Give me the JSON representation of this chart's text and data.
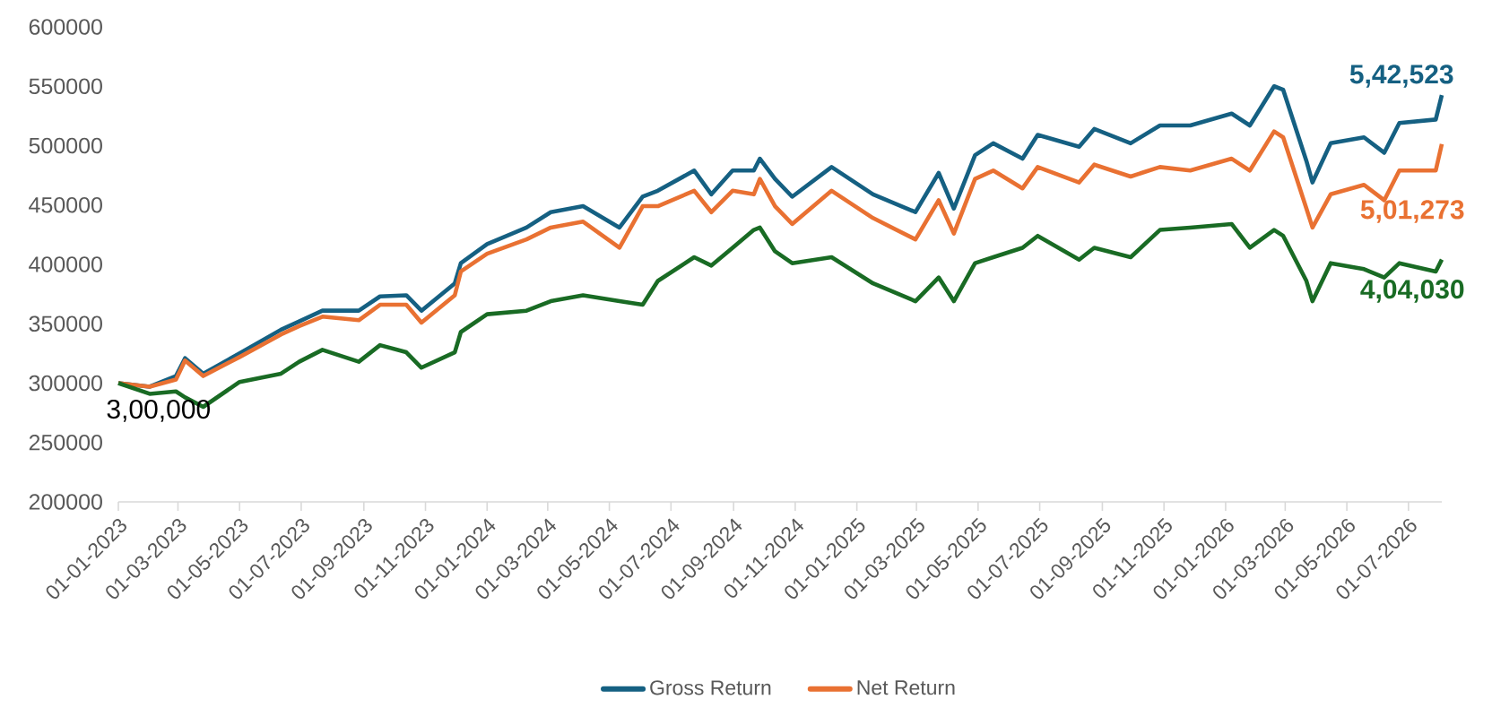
{
  "chart_data": {
    "type": "line",
    "x": [
      "2023-01-01",
      "2023-02-01",
      "2023-02-27",
      "2023-03-08",
      "2023-03-26",
      "2023-05-01",
      "2023-06-11",
      "2023-06-29",
      "2023-07-22",
      "2023-08-27",
      "2023-09-17",
      "2023-10-13",
      "2023-10-28",
      "2023-11-30",
      "2023-12-06",
      "2024-01-01",
      "2024-02-09",
      "2024-03-04",
      "2024-04-05",
      "2024-05-11",
      "2024-06-03",
      "2024-06-18",
      "2024-07-24",
      "2024-08-10",
      "2024-08-31",
      "2024-09-21",
      "2024-09-27",
      "2024-10-12",
      "2024-10-29",
      "2024-12-07",
      "2025-01-17",
      "2025-02-28",
      "2025-03-23",
      "2025-04-07",
      "2025-04-28",
      "2025-05-16",
      "2025-06-14",
      "2025-06-29",
      "2025-08-09",
      "2025-08-24",
      "2025-09-29",
      "2025-10-28",
      "2025-11-27",
      "2026-01-07",
      "2026-01-25",
      "2026-02-18",
      "2026-02-27",
      "2026-03-22",
      "2026-03-28",
      "2026-04-15",
      "2026-05-18",
      "2026-06-07",
      "2026-06-22",
      "2026-07-28",
      "2026-08-03"
    ],
    "series": [
      {
        "name": "Gross Return",
        "color": "#156082",
        "values": [
          300000,
          297000,
          306000,
          321000,
          308000,
          325000,
          345000,
          352000,
          361000,
          361000,
          373000,
          374000,
          361000,
          384000,
          401000,
          417000,
          431000,
          444000,
          449000,
          431000,
          457000,
          462000,
          479000,
          459000,
          479000,
          479000,
          489000,
          472000,
          457000,
          482000,
          459000,
          444000,
          477000,
          447000,
          492000,
          502000,
          489000,
          509000,
          499000,
          514000,
          502000,
          517000,
          517000,
          527000,
          517000,
          550000,
          547000,
          487000,
          469000,
          502000,
          507000,
          494000,
          519000,
          522000,
          542523
        ]
      },
      {
        "name": "Net Return",
        "color": "#e97132",
        "values": [
          300000,
          297000,
          303000,
          319000,
          306000,
          322000,
          341000,
          348000,
          356000,
          353000,
          366000,
          366000,
          351000,
          374000,
          394000,
          409000,
          421000,
          431000,
          436000,
          414000,
          449000,
          449000,
          462000,
          444000,
          462000,
          459000,
          472000,
          449000,
          434000,
          462000,
          439000,
          421000,
          454000,
          426000,
          472000,
          479000,
          464000,
          482000,
          469000,
          484000,
          474000,
          482000,
          479000,
          489000,
          479000,
          512000,
          507000,
          447000,
          431000,
          459000,
          467000,
          454000,
          479000,
          479000,
          501273
        ]
      },
      {
        "color": "#196b24",
        "values": [
          300000,
          291000,
          293000,
          288000,
          280000,
          301000,
          308000,
          318000,
          328000,
          318000,
          332000,
          326000,
          313000,
          326000,
          343000,
          358000,
          361000,
          369000,
          374000,
          369000,
          366000,
          386000,
          406000,
          399000,
          414000,
          429000,
          431000,
          411000,
          401000,
          406000,
          384000,
          369000,
          389000,
          369000,
          401000,
          406000,
          414000,
          424000,
          404000,
          414000,
          406000,
          429000,
          431000,
          434000,
          414000,
          429000,
          424000,
          386000,
          369000,
          401000,
          396000,
          389000,
          401000,
          394000,
          404030
        ]
      }
    ],
    "xlim": [
      "2023-01-01",
      "2026-08-03"
    ],
    "xticks": [
      {
        "value": "2023-01-01",
        "label": "01-01-2023"
      },
      {
        "value": "2023-03-01",
        "label": "01-03-2023"
      },
      {
        "value": "2023-05-01",
        "label": "01-05-2023"
      },
      {
        "value": "2023-07-01",
        "label": "01-07-2023"
      },
      {
        "value": "2023-09-01",
        "label": "01-09-2023"
      },
      {
        "value": "2023-11-01",
        "label": "01-11-2023"
      },
      {
        "value": "2024-01-01",
        "label": "01-01-2024"
      },
      {
        "value": "2024-03-01",
        "label": "01-03-2024"
      },
      {
        "value": "2024-05-01",
        "label": "01-05-2024"
      },
      {
        "value": "2024-07-01",
        "label": "01-07-2024"
      },
      {
        "value": "2024-09-01",
        "label": "01-09-2024"
      },
      {
        "value": "2024-11-01",
        "label": "01-11-2024"
      },
      {
        "value": "2025-01-01",
        "label": "01-01-2025"
      },
      {
        "value": "2025-03-01",
        "label": "01-03-2025"
      },
      {
        "value": "2025-05-01",
        "label": "01-05-2025"
      },
      {
        "value": "2025-07-01",
        "label": "01-07-2025"
      },
      {
        "value": "2025-09-01",
        "label": "01-09-2025"
      },
      {
        "value": "2025-11-01",
        "label": "01-11-2025"
      },
      {
        "value": "2026-01-01",
        "label": "01-01-2026"
      },
      {
        "value": "2026-03-01",
        "label": "01-03-2026"
      },
      {
        "value": "2026-05-01",
        "label": "01-05-2026"
      },
      {
        "value": "2026-07-01",
        "label": "01-07-2026"
      }
    ],
    "ylim": [
      200000,
      600000
    ],
    "yticks": [
      200000,
      250000,
      300000,
      350000,
      400000,
      450000,
      500000,
      550000,
      600000
    ],
    "legend": "bottom",
    "annotations": [
      {
        "text": "3,00,000",
        "x": "2023-01-01",
        "y": 300000
      },
      {
        "text": "5,42,523",
        "x": "2026-08-03",
        "y": 542523
      },
      {
        "text": "5,01,273",
        "x": "2026-08-03",
        "y": 501273
      },
      {
        "text": "4,04,030",
        "x": "2026-08-03",
        "y": 404030
      }
    ]
  }
}
